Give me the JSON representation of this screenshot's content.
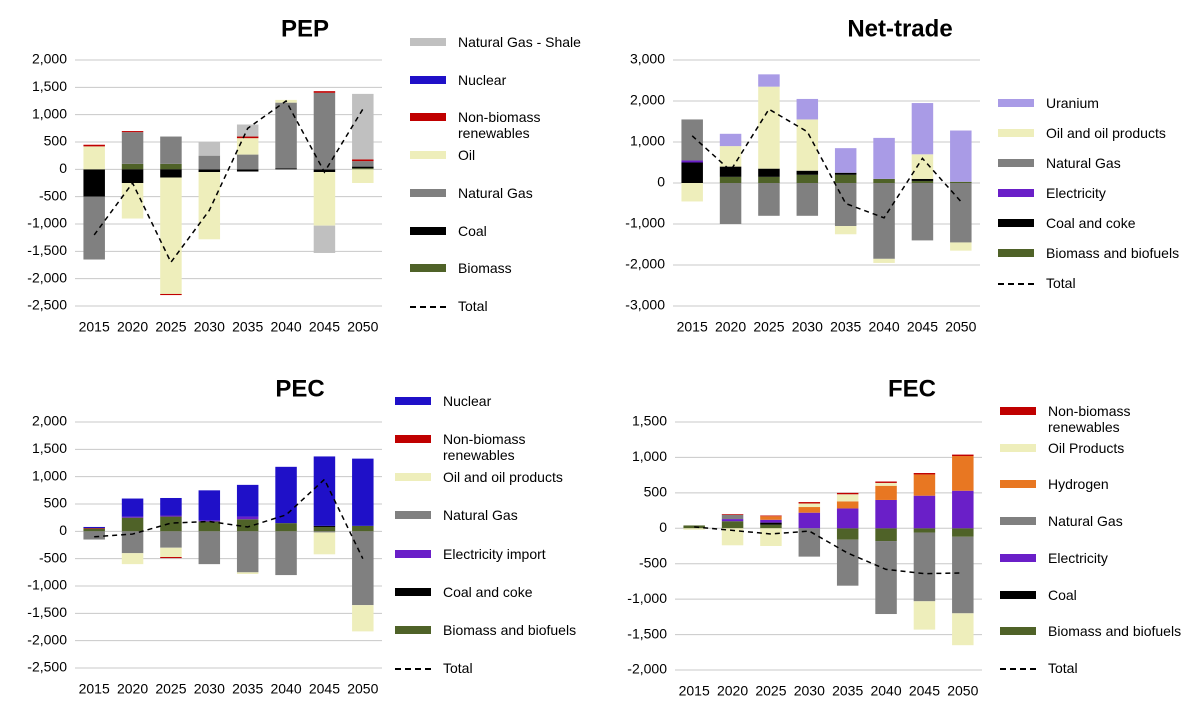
{
  "chart_data": [
    {
      "type": "bar",
      "stacked": true,
      "title": "PEP",
      "categories": [
        "2015",
        "2020",
        "2025",
        "2030",
        "2035",
        "2040",
        "2045",
        "2050"
      ],
      "ylim": [
        -2500,
        2000
      ],
      "yticks": [
        {
          "value": -2500,
          "label": "-2,500"
        },
        {
          "value": -2000,
          "label": "-2,000"
        },
        {
          "value": -1500,
          "label": "-1,500"
        },
        {
          "value": -1000,
          "label": "-1,000"
        },
        -500,
        0,
        500,
        {
          "value": 1000,
          "label": "1,000"
        },
        {
          "value": 1500,
          "label": "1,500"
        },
        {
          "value": 2000,
          "label": "2,000"
        }
      ],
      "grid": true,
      "series": [
        {
          "name": "Biomass",
          "color": "#4f6228",
          "values": [
            0,
            100,
            100,
            0,
            0,
            0,
            0,
            20
          ]
        },
        {
          "name": "Coal",
          "color": "#000000",
          "values": [
            -500,
            -250,
            -150,
            -50,
            -40,
            20,
            -50,
            30
          ]
        },
        {
          "name": "Natural Gas",
          "color": "#808080",
          "values": [
            -1150,
            580,
            500,
            250,
            270,
            1200,
            1400,
            100
          ]
        },
        {
          "name": "Oil",
          "color": "#eeeebb",
          "values": [
            420,
            -650,
            -2130,
            -1230,
            300,
            50,
            -980,
            -250
          ]
        },
        {
          "name": "Non-biomass renewables",
          "color": "#c00000",
          "values": [
            30,
            20,
            -20,
            0,
            30,
            0,
            30,
            30
          ]
        },
        {
          "name": "Nuclear",
          "color": "#1f10c8",
          "values": [
            0,
            0,
            0,
            0,
            0,
            0,
            0,
            0
          ]
        },
        {
          "name": "Natural Gas - Shale",
          "color": "#c0c0c0",
          "values": [
            0,
            0,
            0,
            250,
            220,
            0,
            -500,
            1200
          ]
        },
        {
          "name": "Total",
          "color": "#000000",
          "line": "dashed",
          "values": [
            -1200,
            -250,
            -1700,
            -750,
            750,
            1250,
            -50,
            1100
          ]
        }
      ]
    },
    {
      "type": "bar",
      "stacked": true,
      "title": "Net-trade",
      "categories": [
        "2015",
        "2020",
        "2025",
        "2030",
        "2035",
        "2040",
        "2045",
        "2050"
      ],
      "ylim": [
        -3000,
        3000
      ],
      "yticks": [
        {
          "value": -3000,
          "label": "-3,000"
        },
        {
          "value": -2000,
          "label": "-2,000"
        },
        {
          "value": -1000,
          "label": "-1,000"
        },
        0,
        {
          "value": 1000,
          "label": "1,000"
        },
        {
          "value": 2000,
          "label": "2,000"
        },
        {
          "value": 3000,
          "label": "3,000"
        }
      ],
      "grid": true,
      "series": [
        {
          "name": "Biomass and biofuels",
          "color": "#4f6228",
          "values": [
            0,
            150,
            150,
            200,
            200,
            100,
            50,
            30
          ]
        },
        {
          "name": "Coal and coke",
          "color": "#000000",
          "values": [
            500,
            250,
            200,
            100,
            50,
            0,
            50,
            0
          ]
        },
        {
          "name": "Electricity",
          "color": "#6a1fc8",
          "values": [
            50,
            0,
            0,
            0,
            0,
            0,
            0,
            0
          ]
        },
        {
          "name": "Natural Gas",
          "color": "#808080",
          "values": [
            1000,
            -1000,
            -800,
            -800,
            -1050,
            -1850,
            -1400,
            -1450
          ]
        },
        {
          "name": "Oil and oil products",
          "color": "#eeeebb",
          "values": [
            -450,
            500,
            2000,
            1250,
            -200,
            -100,
            600,
            -200
          ]
        },
        {
          "name": "Uranium",
          "color": "#a99be6",
          "values": [
            0,
            300,
            300,
            500,
            600,
            1000,
            1250,
            1250
          ]
        },
        {
          "name": "Total",
          "color": "#000000",
          "line": "dashed",
          "values": [
            1150,
            300,
            1800,
            1250,
            -500,
            -850,
            600,
            -450
          ]
        }
      ]
    },
    {
      "type": "bar",
      "stacked": true,
      "title": "PEC",
      "categories": [
        "2015",
        "2020",
        "2025",
        "2030",
        "2035",
        "2040",
        "2045",
        "2050"
      ],
      "ylim": [
        -2500,
        2000
      ],
      "yticks": [
        {
          "value": -2500,
          "label": "-2,500"
        },
        {
          "value": -2000,
          "label": "-2,000"
        },
        {
          "value": -1500,
          "label": "-1,500"
        },
        {
          "value": -1000,
          "label": "-1,000"
        },
        -500,
        0,
        500,
        {
          "value": 1000,
          "label": "1,000"
        },
        {
          "value": 1500,
          "label": "1,500"
        },
        {
          "value": 2000,
          "label": "2,000"
        }
      ],
      "grid": true,
      "series": [
        {
          "name": "Biomass and biofuels",
          "color": "#4f6228",
          "values": [
            50,
            250,
            270,
            180,
            220,
            150,
            80,
            100
          ]
        },
        {
          "name": "Coal and coke",
          "color": "#000000",
          "values": [
            0,
            0,
            0,
            0,
            0,
            0,
            20,
            0
          ]
        },
        {
          "name": "Electricity import",
          "color": "#6a1fc8",
          "values": [
            0,
            20,
            20,
            20,
            50,
            0,
            0,
            0
          ]
        },
        {
          "name": "Natural Gas",
          "color": "#808080",
          "values": [
            -150,
            -400,
            -300,
            -600,
            -750,
            -800,
            -20,
            -1350
          ]
        },
        {
          "name": "Oil and oil products",
          "color": "#eeeebb",
          "values": [
            0,
            -200,
            -170,
            0,
            -30,
            0,
            -400,
            -480
          ]
        },
        {
          "name": "Non-biomass renewables",
          "color": "#c00000",
          "values": [
            10,
            0,
            -20,
            0,
            0,
            0,
            0,
            0
          ]
        },
        {
          "name": "Nuclear",
          "color": "#1f10c8",
          "values": [
            20,
            330,
            320,
            550,
            580,
            1030,
            1270,
            1230
          ]
        },
        {
          "name": "Total",
          "color": "#000000",
          "line": "dashed",
          "values": [
            -100,
            -50,
            150,
            180,
            80,
            300,
            950,
            -500
          ]
        }
      ]
    },
    {
      "type": "bar",
      "stacked": true,
      "title": "FEC",
      "categories": [
        "2015",
        "2020",
        "2025",
        "2030",
        "2035",
        "2040",
        "2045",
        "2050"
      ],
      "ylim": [
        -2000,
        1500
      ],
      "yticks": [
        {
          "value": -2000,
          "label": "-2,000"
        },
        {
          "value": -1500,
          "label": "-1,500"
        },
        {
          "value": -1000,
          "label": "-1,000"
        },
        -500,
        0,
        500,
        {
          "value": 1000,
          "label": "1,000"
        },
        {
          "value": 1500,
          "label": "1,500"
        }
      ],
      "grid": true,
      "series": [
        {
          "name": "Biomass and biofuels",
          "color": "#4f6228",
          "values": [
            40,
            100,
            50,
            0,
            -160,
            -180,
            -60,
            -120
          ]
        },
        {
          "name": "Coal",
          "color": "#000000",
          "values": [
            0,
            0,
            30,
            0,
            0,
            0,
            0,
            0
          ]
        },
        {
          "name": "Electricity",
          "color": "#6a1fc8",
          "values": [
            0,
            30,
            40,
            220,
            280,
            400,
            460,
            530
          ]
        },
        {
          "name": "Natural Gas",
          "color": "#808080",
          "values": [
            0,
            60,
            0,
            -400,
            -650,
            -1030,
            -970,
            -1080
          ]
        },
        {
          "name": "Hydrogen",
          "color": "#e87722",
          "values": [
            0,
            0,
            50,
            80,
            100,
            200,
            300,
            490
          ]
        },
        {
          "name": "Oil Products",
          "color": "#eeeebb",
          "values": [
            -20,
            -240,
            -250,
            50,
            100,
            40,
            -400,
            -450
          ]
        },
        {
          "name": "Non-biomass renewables",
          "color": "#c00000",
          "values": [
            0,
            10,
            10,
            20,
            20,
            20,
            20,
            20
          ]
        },
        {
          "name": "Total",
          "color": "#000000",
          "line": "dashed",
          "values": [
            20,
            -30,
            -80,
            -40,
            -350,
            -580,
            -640,
            -630
          ]
        }
      ]
    }
  ]
}
